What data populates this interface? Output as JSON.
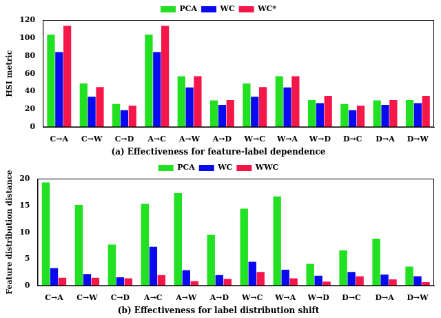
{
  "chart_data": [
    {
      "type": "bar",
      "title": "(a) Effectiveness for feature-label dependence",
      "y_label": "HSI metric",
      "categories": [
        "C→A",
        "C→W",
        "C→D",
        "A→C",
        "A→W",
        "A→D",
        "W→C",
        "W→A",
        "W→D",
        "D→C",
        "D→A",
        "D→W"
      ],
      "series": [
        {
          "name": "PCA",
          "color": "#22e022",
          "values": [
            103.5,
            49,
            26,
            103.5,
            57,
            30,
            49,
            57,
            30.5,
            26,
            30,
            30.5
          ]
        },
        {
          "name": "WC",
          "color": "#0a0af0",
          "values": [
            84,
            34,
            19,
            84,
            44.5,
            25,
            34,
            44.5,
            27,
            19,
            25,
            27
          ]
        },
        {
          "name": "WC*",
          "color": "#f5174a",
          "values": [
            113.5,
            45,
            24,
            113.5,
            57,
            30.5,
            45,
            57,
            35,
            24,
            30.5,
            35
          ]
        }
      ],
      "ylim": [
        0,
        120
      ],
      "yticks": [
        0,
        20,
        40,
        60,
        80,
        100,
        120
      ],
      "grid": false,
      "legend": "top"
    },
    {
      "type": "bar",
      "title": "(b) Effectiveness for label distribution shift",
      "y_label": "Feature distribution distance",
      "categories": [
        "C→A",
        "C→W",
        "C→D",
        "A→C",
        "A→W",
        "A→D",
        "W→C",
        "W→A",
        "W→D",
        "D→C",
        "D→A",
        "D→W"
      ],
      "series": [
        {
          "name": "PCA",
          "color": "#22e022",
          "values": [
            19.3,
            15.1,
            7.7,
            15.3,
            17.3,
            9.5,
            14.4,
            16.7,
            4.1,
            6.6,
            8.8,
            3.6
          ]
        },
        {
          "name": "WC",
          "color": "#0a0af0",
          "values": [
            3.3,
            2.2,
            1.6,
            7.3,
            2.9,
            2.0,
            4.5,
            3.0,
            1.9,
            2.6,
            2.1,
            1.8
          ]
        },
        {
          "name": "WWC",
          "color": "#f5174a",
          "values": [
            1.5,
            1.5,
            1.4,
            2.0,
            0.9,
            1.3,
            2.6,
            1.4,
            0.8,
            1.8,
            1.2,
            0.7
          ]
        }
      ],
      "ylim": [
        0,
        20
      ],
      "yticks": [
        0,
        5,
        10,
        15,
        20
      ],
      "grid": false,
      "legend": "top"
    }
  ]
}
